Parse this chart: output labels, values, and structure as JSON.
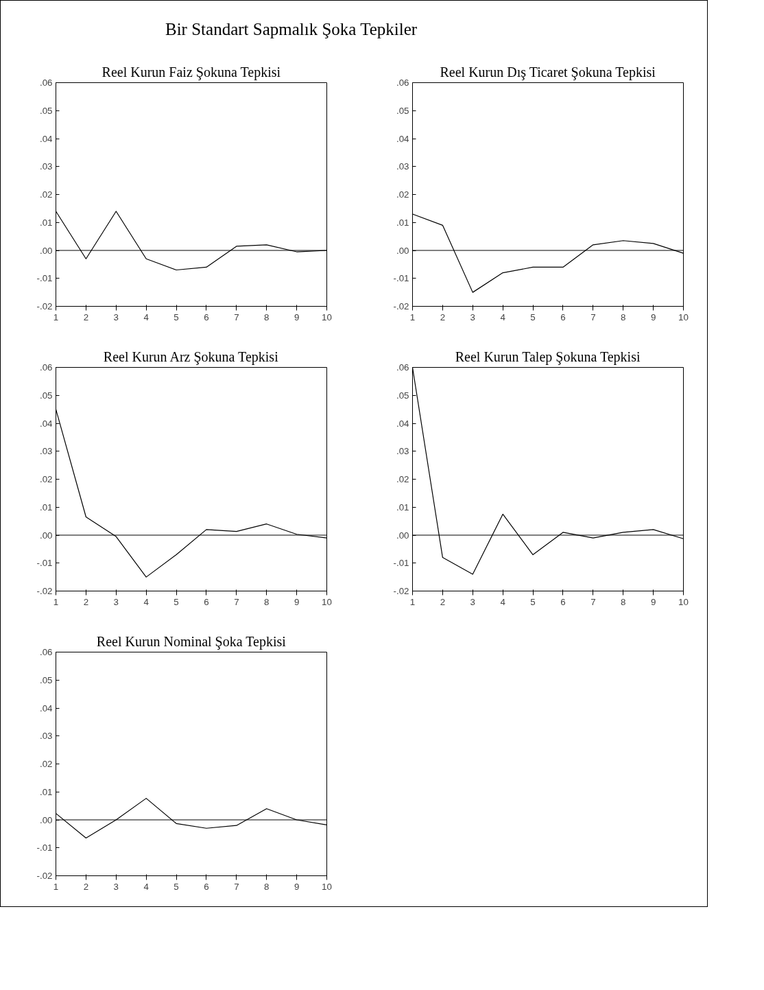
{
  "chart_data": [
    {
      "type": "other",
      "title": "Bir Standart Sapmalık Şoka Tepkiler"
    },
    {
      "type": "line",
      "title": "Reel Kurun Faiz Şokuna Tepkisi",
      "x": [
        1,
        2,
        3,
        4,
        5,
        6,
        7,
        8,
        9,
        10
      ],
      "xlim": [
        1,
        10
      ],
      "xticks": [
        1,
        2,
        3,
        4,
        5,
        6,
        7,
        8,
        9,
        10
      ],
      "ylim": [
        -0.02,
        0.06
      ],
      "yticks": [
        {
          "value": -0.02,
          "label": "-.02"
        },
        {
          "value": -0.01,
          "label": "-.01"
        },
        {
          "value": 0,
          "label": ".00"
        },
        {
          "value": 0.01,
          "label": ".01"
        },
        {
          "value": 0.02,
          "label": ".02"
        },
        {
          "value": 0.03,
          "label": ".03"
        },
        {
          "value": 0.04,
          "label": ".04"
        },
        {
          "value": 0.05,
          "label": ".05"
        },
        {
          "value": 0.06,
          "label": ".06"
        }
      ],
      "grid": false,
      "series": [
        {
          "color": "#000000",
          "values": [
            0.014,
            -0.003,
            0.014,
            -0.003,
            -0.007,
            -0.006,
            0.0015,
            0.002,
            -0.0005,
            0.0
          ]
        }
      ],
      "ref_lines": [
        {
          "axis": "y",
          "value": 0,
          "color": "#000000"
        }
      ]
    },
    {
      "type": "line",
      "title": "Reel Kurun Dış Ticaret Şokuna Tepkisi",
      "x": [
        1,
        2,
        3,
        4,
        5,
        6,
        7,
        8,
        9,
        10
      ],
      "xlim": [
        1,
        10
      ],
      "xticks": [
        1,
        2,
        3,
        4,
        5,
        6,
        7,
        8,
        9,
        10
      ],
      "ylim": [
        -0.02,
        0.06
      ],
      "yticks": [
        {
          "value": -0.02,
          "label": "-.02"
        },
        {
          "value": -0.01,
          "label": "-.01"
        },
        {
          "value": 0,
          "label": ".00"
        },
        {
          "value": 0.01,
          "label": ".01"
        },
        {
          "value": 0.02,
          "label": ".02"
        },
        {
          "value": 0.03,
          "label": ".03"
        },
        {
          "value": 0.04,
          "label": ".04"
        },
        {
          "value": 0.05,
          "label": ".05"
        },
        {
          "value": 0.06,
          "label": ".06"
        }
      ],
      "grid": false,
      "series": [
        {
          "color": "#000000",
          "values": [
            0.013,
            0.009,
            -0.015,
            -0.008,
            -0.006,
            -0.006,
            0.002,
            0.0035,
            0.0025,
            -0.001
          ]
        }
      ],
      "ref_lines": [
        {
          "axis": "y",
          "value": 0,
          "color": "#000000"
        }
      ]
    },
    {
      "type": "line",
      "title": "Reel Kurun Arz Şokuna Tepkisi",
      "x": [
        1,
        2,
        3,
        4,
        5,
        6,
        7,
        8,
        9,
        10
      ],
      "xlim": [
        1,
        10
      ],
      "xticks": [
        1,
        2,
        3,
        4,
        5,
        6,
        7,
        8,
        9,
        10
      ],
      "ylim": [
        -0.02,
        0.06
      ],
      "yticks": [
        {
          "value": -0.02,
          "label": "-.02"
        },
        {
          "value": -0.01,
          "label": "-.01"
        },
        {
          "value": 0,
          "label": ".00"
        },
        {
          "value": 0.01,
          "label": ".01"
        },
        {
          "value": 0.02,
          "label": ".02"
        },
        {
          "value": 0.03,
          "label": ".03"
        },
        {
          "value": 0.04,
          "label": ".04"
        },
        {
          "value": 0.05,
          "label": ".05"
        },
        {
          "value": 0.06,
          "label": ".06"
        }
      ],
      "grid": false,
      "series": [
        {
          "color": "#000000",
          "values": [
            0.045,
            0.0065,
            -0.0005,
            -0.015,
            -0.007,
            0.002,
            0.0013,
            0.004,
            0.0003,
            -0.001
          ]
        }
      ],
      "ref_lines": [
        {
          "axis": "y",
          "value": 0,
          "color": "#000000"
        }
      ]
    },
    {
      "type": "line",
      "title": "Reel Kurun Talep Şokuna Tepkisi",
      "x": [
        1,
        2,
        3,
        4,
        5,
        6,
        7,
        8,
        9,
        10
      ],
      "xlim": [
        1,
        10
      ],
      "xticks": [
        1,
        2,
        3,
        4,
        5,
        6,
        7,
        8,
        9,
        10
      ],
      "ylim": [
        -0.02,
        0.06
      ],
      "yticks": [
        {
          "value": -0.02,
          "label": "-.02"
        },
        {
          "value": -0.01,
          "label": "-.01"
        },
        {
          "value": 0,
          "label": ".00"
        },
        {
          "value": 0.01,
          "label": ".01"
        },
        {
          "value": 0.02,
          "label": ".02"
        },
        {
          "value": 0.03,
          "label": ".03"
        },
        {
          "value": 0.04,
          "label": ".04"
        },
        {
          "value": 0.05,
          "label": ".05"
        },
        {
          "value": 0.06,
          "label": ".06"
        }
      ],
      "grid": false,
      "series": [
        {
          "color": "#000000",
          "values": [
            0.06,
            -0.008,
            -0.014,
            0.0075,
            -0.007,
            0.001,
            -0.001,
            0.001,
            0.002,
            -0.0013
          ]
        }
      ],
      "ref_lines": [
        {
          "axis": "y",
          "value": 0,
          "color": "#000000"
        }
      ]
    },
    {
      "type": "line",
      "title": "Reel Kurun Nominal Şoka Tepkisi",
      "x": [
        1,
        2,
        3,
        4,
        5,
        6,
        7,
        8,
        9,
        10
      ],
      "xlim": [
        1,
        10
      ],
      "xticks": [
        1,
        2,
        3,
        4,
        5,
        6,
        7,
        8,
        9,
        10
      ],
      "ylim": [
        -0.02,
        0.06
      ],
      "yticks": [
        {
          "value": -0.02,
          "label": "-.02"
        },
        {
          "value": -0.01,
          "label": "-.01"
        },
        {
          "value": 0,
          "label": ".00"
        },
        {
          "value": 0.01,
          "label": ".01"
        },
        {
          "value": 0.02,
          "label": ".02"
        },
        {
          "value": 0.03,
          "label": ".03"
        },
        {
          "value": 0.04,
          "label": ".04"
        },
        {
          "value": 0.05,
          "label": ".05"
        },
        {
          "value": 0.06,
          "label": ".06"
        }
      ],
      "grid": false,
      "series": [
        {
          "color": "#000000",
          "values": [
            0.0023,
            -0.0065,
            0.0,
            0.0077,
            -0.0013,
            -0.003,
            -0.002,
            0.004,
            0.0,
            -0.0018
          ]
        }
      ],
      "ref_lines": [
        {
          "axis": "y",
          "value": 0,
          "color": "#000000"
        }
      ]
    }
  ]
}
